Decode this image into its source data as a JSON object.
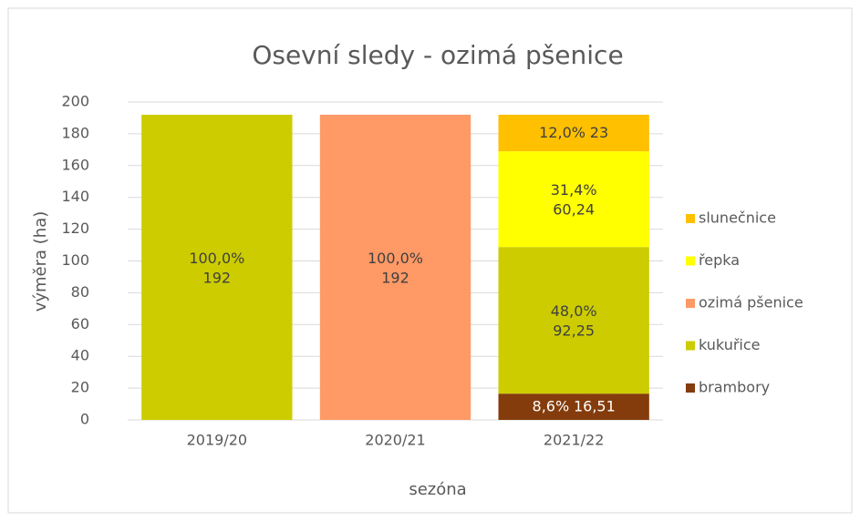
{
  "chart_data": {
    "type": "stacked-bar",
    "title": "Osevní sledy - ozimá pšenice",
    "x_label": "sezóna",
    "y_label": "výměra (ha)",
    "categories": [
      "2019/20",
      "2020/21",
      "2021/22"
    ],
    "series": [
      {
        "name": "brambory",
        "color": "#843c0c",
        "label_color": "#ffffff",
        "values": [
          null,
          null,
          16.51
        ],
        "value_labels": [
          null,
          null,
          "16,51"
        ],
        "percent_labels": [
          null,
          null,
          "8,6%"
        ]
      },
      {
        "name": "kukuřice",
        "color": "#cccc00",
        "label_color": "#404040",
        "values": [
          192,
          null,
          92.25
        ],
        "value_labels": [
          "192",
          null,
          "92,25"
        ],
        "percent_labels": [
          "100,0%",
          null,
          "48,0%"
        ]
      },
      {
        "name": "ozimá pšenice",
        "color": "#ff9966",
        "label_color": "#404040",
        "values": [
          null,
          192,
          null
        ],
        "value_labels": [
          null,
          "192",
          null
        ],
        "percent_labels": [
          null,
          "100,0%",
          null
        ]
      },
      {
        "name": "řepka",
        "color": "#ffff00",
        "label_color": "#404040",
        "values": [
          null,
          null,
          60.24
        ],
        "value_labels": [
          null,
          null,
          "60,24"
        ],
        "percent_labels": [
          null,
          null,
          "31,4%"
        ]
      },
      {
        "name": "slunečnice",
        "color": "#ffc000",
        "label_color": "#404040",
        "values": [
          null,
          null,
          23
        ],
        "value_labels": [
          null,
          null,
          "23"
        ],
        "percent_labels": [
          null,
          null,
          "12,0%"
        ]
      }
    ],
    "ylim": [
      0,
      200
    ],
    "yticks": [
      0,
      20,
      40,
      60,
      80,
      100,
      120,
      140,
      160,
      180,
      200
    ],
    "grid": true,
    "legend": "right"
  }
}
